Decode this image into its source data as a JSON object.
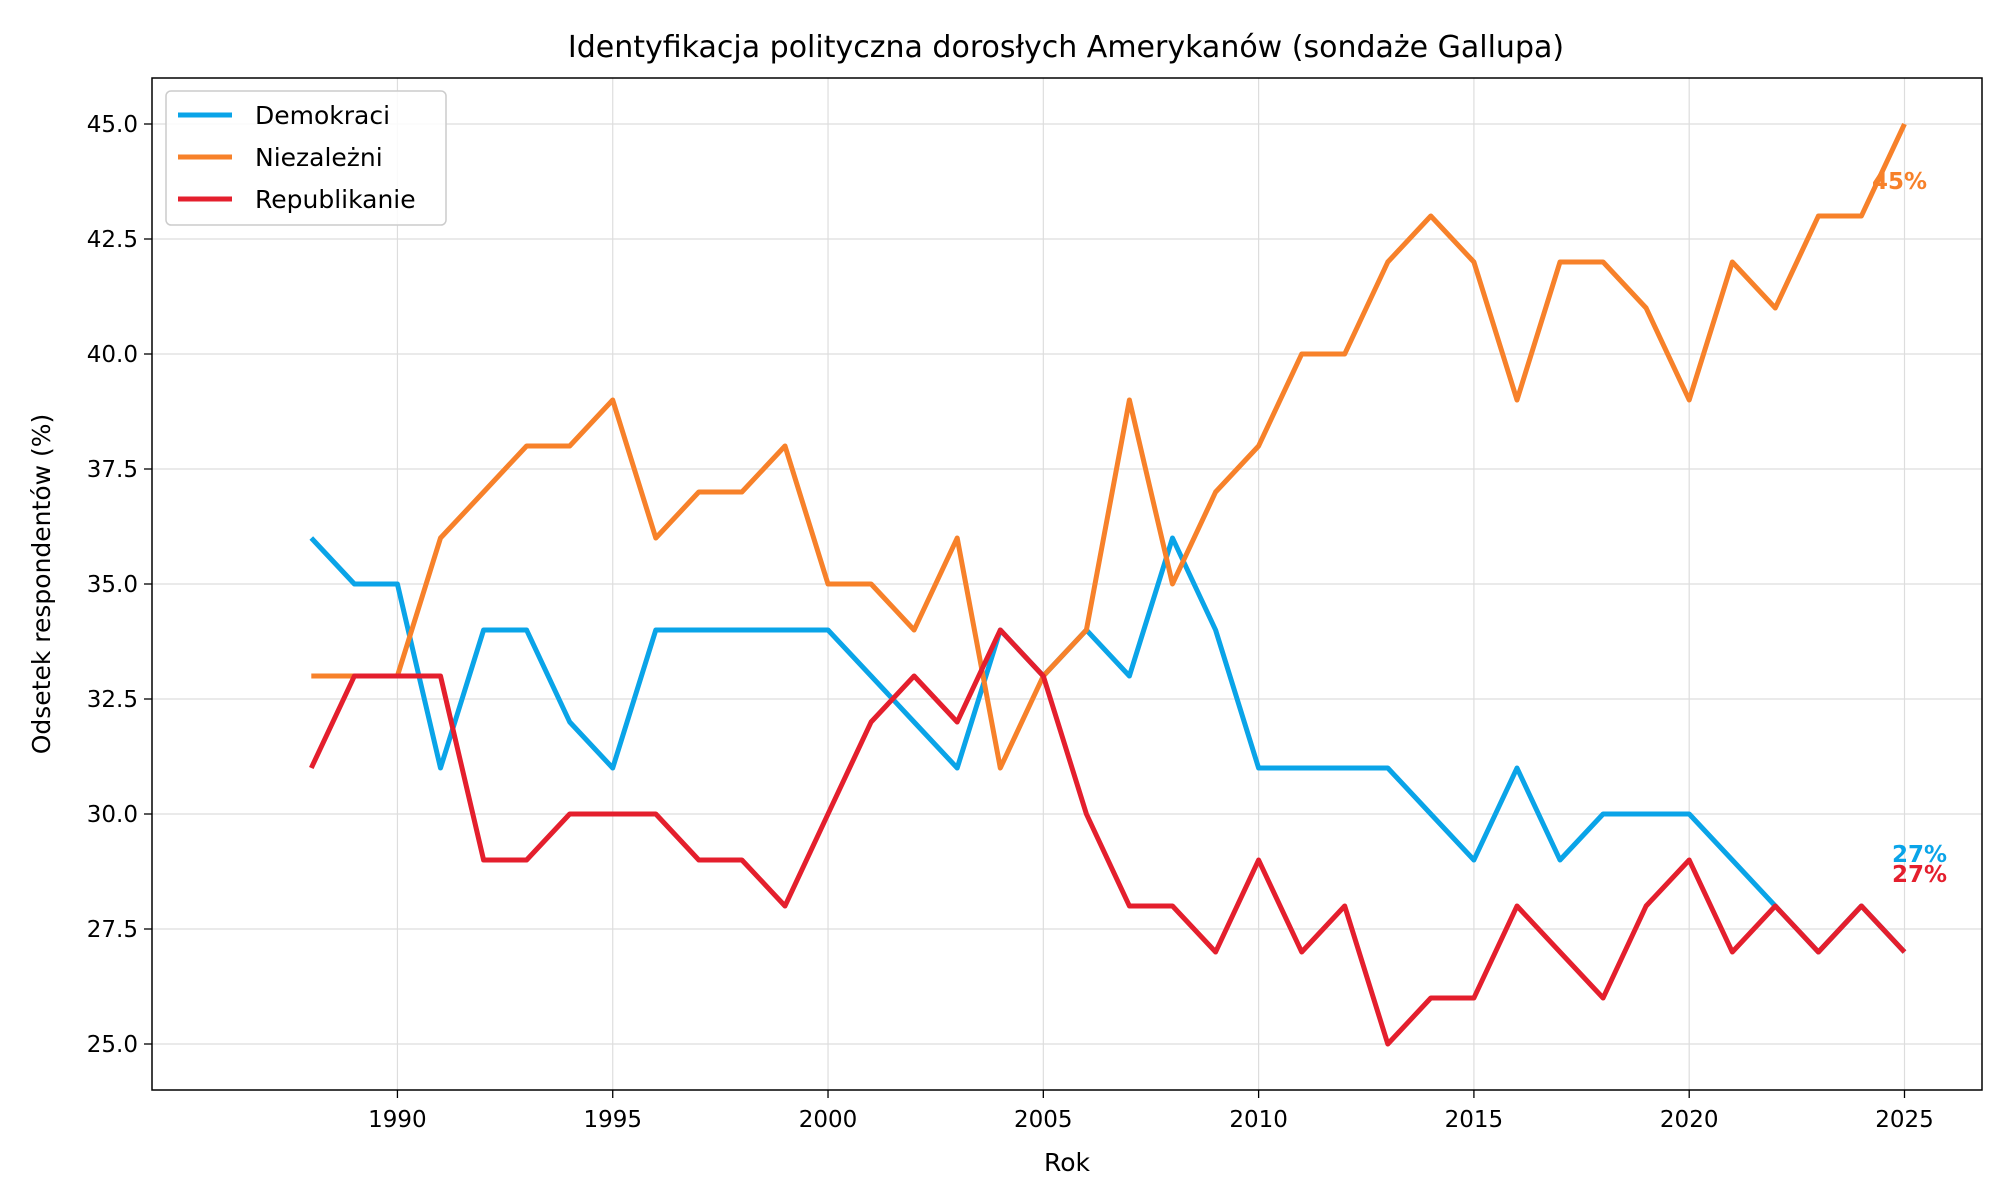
{
  "chart_data": {
    "type": "line",
    "title": "Identyfikacja polityczna dorosłych Amerykanów (sondaże Gallupa)",
    "xlabel": "Rok",
    "ylabel": "Odsetek respondentów (%)",
    "xlim": [
      1984.3,
      2026.8
    ],
    "ylim": [
      24.0,
      46.0
    ],
    "xticks": [
      1990,
      1995,
      2000,
      2005,
      2010,
      2015,
      2020,
      2025
    ],
    "yticks": [
      25.0,
      27.5,
      30.0,
      32.5,
      35.0,
      37.5,
      40.0,
      42.5,
      45.0
    ],
    "grid": true,
    "legend_position": "top-left",
    "x": [
      1988,
      1989,
      1990,
      1991,
      1992,
      1993,
      1994,
      1995,
      1996,
      1997,
      1998,
      1999,
      2000,
      2001,
      2002,
      2003,
      2004,
      2005,
      2006,
      2007,
      2008,
      2009,
      2010,
      2011,
      2012,
      2013,
      2014,
      2015,
      2016,
      2017,
      2018,
      2019,
      2020,
      2021,
      2022,
      2023,
      2024,
      2025
    ],
    "series": [
      {
        "name": "Demokraci",
        "color": "#0aa4e8",
        "values": [
          36,
          35,
          35,
          31,
          34,
          34,
          32,
          31,
          34,
          34,
          34,
          34,
          34,
          33,
          32,
          31,
          34,
          33,
          34,
          33,
          36,
          34,
          31,
          31,
          31,
          31,
          30,
          29,
          31,
          29,
          30,
          30,
          30,
          29,
          28,
          27,
          28,
          27
        ],
        "end_label": "27%"
      },
      {
        "name": "Niezależni",
        "color": "#f7812a",
        "values": [
          33,
          33,
          33,
          36,
          37,
          38,
          38,
          39,
          36,
          37,
          37,
          38,
          35,
          35,
          34,
          36,
          31,
          33,
          34,
          39,
          35,
          37,
          38,
          40,
          40,
          42,
          43,
          42,
          39,
          42,
          42,
          41,
          39,
          42,
          41,
          43,
          43,
          45
        ],
        "end_label": "45%"
      },
      {
        "name": "Republikanie",
        "color": "#e41f2d",
        "values": [
          31,
          33,
          33,
          33,
          29,
          29,
          30,
          30,
          30,
          29,
          29,
          28,
          30,
          32,
          33,
          32,
          34,
          33,
          30,
          28,
          28,
          27,
          29,
          27,
          28,
          25,
          26,
          26,
          28,
          27,
          26,
          28,
          29,
          27,
          28,
          27,
          28,
          27
        ],
        "end_label": "27%"
      }
    ]
  }
}
